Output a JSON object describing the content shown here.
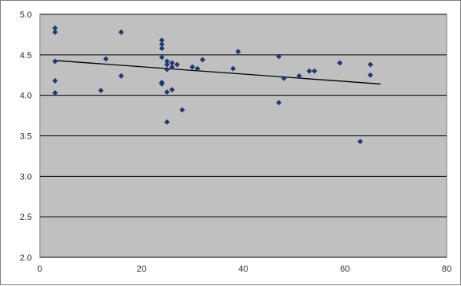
{
  "chart_data": {
    "type": "scatter",
    "title": "",
    "xlabel": "",
    "ylabel": "",
    "xlim": [
      0,
      80
    ],
    "ylim": [
      2.0,
      5.0
    ],
    "x_ticks": [
      "0",
      "20",
      "40",
      "60",
      "80"
    ],
    "y_ticks": [
      "2.0",
      "2.5",
      "3.0",
      "3.5",
      "4.0",
      "4.5",
      "5.0"
    ],
    "grid": "horizontal",
    "legend": "none",
    "colors": {
      "plot_background": "#c0c0c0",
      "gridline": "#000000",
      "marker": "#1f3a73",
      "trendline": "#000000"
    },
    "trendline": {
      "type": "linear",
      "x": [
        3,
        67
      ],
      "y": [
        4.43,
        4.14
      ]
    },
    "points": [
      {
        "x": 3,
        "y": 4.83
      },
      {
        "x": 3,
        "y": 4.78
      },
      {
        "x": 3,
        "y": 4.42
      },
      {
        "x": 3,
        "y": 4.18
      },
      {
        "x": 3,
        "y": 4.03
      },
      {
        "x": 12,
        "y": 4.06
      },
      {
        "x": 13,
        "y": 4.45
      },
      {
        "x": 16,
        "y": 4.78
      },
      {
        "x": 16,
        "y": 4.24
      },
      {
        "x": 24,
        "y": 4.68
      },
      {
        "x": 24,
        "y": 4.63
      },
      {
        "x": 24,
        "y": 4.58
      },
      {
        "x": 24,
        "y": 4.47
      },
      {
        "x": 24,
        "y": 4.16
      },
      {
        "x": 24,
        "y": 4.14
      },
      {
        "x": 25,
        "y": 4.42
      },
      {
        "x": 25,
        "y": 4.38
      },
      {
        "x": 25,
        "y": 4.32
      },
      {
        "x": 25,
        "y": 4.04
      },
      {
        "x": 25,
        "y": 3.67
      },
      {
        "x": 26,
        "y": 4.4
      },
      {
        "x": 26,
        "y": 4.35
      },
      {
        "x": 26,
        "y": 4.07
      },
      {
        "x": 27,
        "y": 4.38
      },
      {
        "x": 28,
        "y": 3.82
      },
      {
        "x": 30,
        "y": 4.35
      },
      {
        "x": 31,
        "y": 4.33
      },
      {
        "x": 32,
        "y": 4.44
      },
      {
        "x": 38,
        "y": 4.33
      },
      {
        "x": 39,
        "y": 4.54
      },
      {
        "x": 47,
        "y": 4.48
      },
      {
        "x": 47,
        "y": 3.91
      },
      {
        "x": 48,
        "y": 4.21
      },
      {
        "x": 51,
        "y": 4.24
      },
      {
        "x": 53,
        "y": 4.3
      },
      {
        "x": 54,
        "y": 4.3
      },
      {
        "x": 59,
        "y": 4.4
      },
      {
        "x": 63,
        "y": 3.43
      },
      {
        "x": 65,
        "y": 4.38
      },
      {
        "x": 65,
        "y": 4.25
      }
    ]
  }
}
